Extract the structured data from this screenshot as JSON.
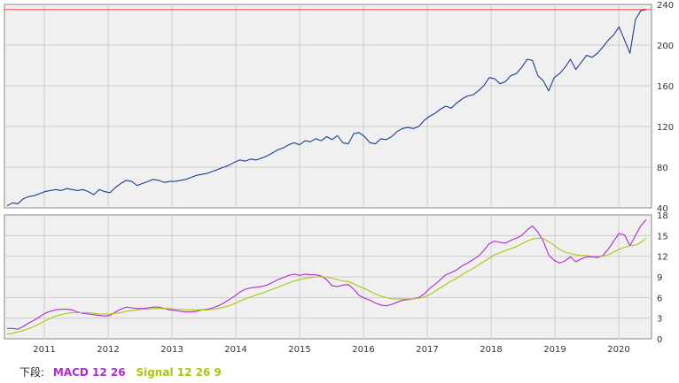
{
  "chart_data": [
    {
      "type": "line",
      "x_labels": [
        "2011",
        "2012",
        "2013",
        "2014",
        "2015",
        "2016",
        "2017",
        "2018",
        "2019",
        "2020"
      ],
      "y_ticks": [
        40,
        80,
        120,
        160,
        200,
        240
      ],
      "ylim": [
        40,
        240
      ],
      "grid": true,
      "reference_line": 235,
      "colors": {
        "price": "#1f3f8f",
        "reference": "#ff6a6a",
        "panel_bg": "#f0f0f0",
        "grid": "#cccccc"
      },
      "series": [
        {
          "values": [
            42,
            45,
            44,
            49,
            51,
            52,
            54,
            56,
            57,
            58,
            57,
            59,
            58,
            57,
            58,
            56,
            53,
            58,
            56,
            55,
            60,
            64,
            67,
            66,
            62,
            64,
            66,
            68,
            67,
            65,
            66,
            66,
            67,
            68,
            70,
            72,
            73,
            74,
            76,
            78,
            80,
            82,
            85,
            87,
            86,
            88,
            87,
            89,
            91,
            94,
            97,
            99,
            102,
            104,
            102,
            106,
            105,
            108,
            106,
            110,
            107,
            111,
            104,
            103,
            113,
            114,
            110,
            104,
            103,
            108,
            107,
            110,
            115,
            118,
            119,
            118,
            120,
            126,
            130,
            133,
            137,
            140,
            138,
            143,
            147,
            150,
            151,
            155,
            160,
            168,
            167,
            162,
            164,
            170,
            172,
            178,
            186,
            185,
            170,
            165,
            155,
            168,
            172,
            178,
            186,
            176,
            183,
            190,
            188,
            192,
            198,
            205,
            210,
            218,
            205,
            192,
            225,
            234,
            235
          ]
        }
      ]
    },
    {
      "type": "line",
      "x_labels": [
        "2011",
        "2012",
        "2013",
        "2014",
        "2015",
        "2016",
        "2017",
        "2018",
        "2019",
        "2020"
      ],
      "y_ticks": [
        0,
        3,
        6,
        9,
        12,
        15,
        18
      ],
      "ylim": [
        0,
        18
      ],
      "grid": true,
      "colors": {
        "macd": "#b02ad6",
        "signal": "#a7c90a",
        "panel_bg": "#f0f0f0",
        "grid": "#cccccc"
      },
      "series": [
        {
          "name": "MACD 12 26",
          "values": [
            1.5,
            1.5,
            1.4,
            1.8,
            2.3,
            2.7,
            3.2,
            3.7,
            4.0,
            4.2,
            4.3,
            4.3,
            4.2,
            3.9,
            3.7,
            3.6,
            3.5,
            3.4,
            3.3,
            3.4,
            3.9,
            4.3,
            4.6,
            4.5,
            4.4,
            4.4,
            4.5,
            4.6,
            4.6,
            4.4,
            4.2,
            4.1,
            4.0,
            3.9,
            3.9,
            4.0,
            4.2,
            4.3,
            4.5,
            4.8,
            5.2,
            5.7,
            6.2,
            6.8,
            7.2,
            7.4,
            7.5,
            7.6,
            7.8,
            8.2,
            8.6,
            8.9,
            9.2,
            9.4,
            9.2,
            9.4,
            9.3,
            9.3,
            9.1,
            8.6,
            7.7,
            7.6,
            7.8,
            7.9,
            7.2,
            6.3,
            5.9,
            5.6,
            5.2,
            4.9,
            4.8,
            5.0,
            5.3,
            5.6,
            5.7,
            5.8,
            6.0,
            6.5,
            7.3,
            7.9,
            8.6,
            9.3,
            9.6,
            10.0,
            10.6,
            11.0,
            11.5,
            12.0,
            12.8,
            13.8,
            14.2,
            14.0,
            13.9,
            14.3,
            14.6,
            15.0,
            15.8,
            16.4,
            15.5,
            14.2,
            12.2,
            11.4,
            11.0,
            11.3,
            11.9,
            11.2,
            11.6,
            11.9,
            11.9,
            11.8,
            12.1,
            13.0,
            14.2,
            15.3,
            15.1,
            13.5,
            15.0,
            16.4,
            17.3
          ]
        },
        {
          "name": "Signal 12 26 9",
          "values": [
            0.7,
            0.8,
            1.0,
            1.2,
            1.5,
            1.8,
            2.2,
            2.6,
            3.0,
            3.3,
            3.5,
            3.7,
            3.8,
            3.8,
            3.8,
            3.8,
            3.7,
            3.6,
            3.6,
            3.6,
            3.7,
            3.8,
            4.0,
            4.1,
            4.2,
            4.3,
            4.3,
            4.4,
            4.4,
            4.4,
            4.4,
            4.3,
            4.3,
            4.2,
            4.2,
            4.2,
            4.2,
            4.2,
            4.3,
            4.4,
            4.6,
            4.8,
            5.1,
            5.5,
            5.8,
            6.1,
            6.4,
            6.6,
            6.9,
            7.2,
            7.5,
            7.8,
            8.1,
            8.4,
            8.6,
            8.8,
            8.9,
            9.0,
            9.0,
            9.0,
            8.8,
            8.6,
            8.4,
            8.3,
            8.0,
            7.6,
            7.3,
            6.9,
            6.5,
            6.2,
            6.0,
            5.8,
            5.8,
            5.8,
            5.8,
            5.8,
            5.9,
            6.1,
            6.4,
            6.9,
            7.4,
            7.9,
            8.4,
            8.8,
            9.3,
            9.8,
            10.2,
            10.7,
            11.2,
            11.7,
            12.2,
            12.5,
            12.8,
            13.1,
            13.4,
            13.8,
            14.2,
            14.5,
            14.6,
            14.6,
            14.1,
            13.6,
            13.0,
            12.6,
            12.4,
            12.2,
            12.1,
            12.1,
            12.0,
            12.0,
            12.0,
            12.2,
            12.6,
            13.0,
            13.3,
            13.5,
            13.6,
            14.0,
            14.6
          ]
        }
      ]
    }
  ],
  "legend": {
    "prefix": "下段:",
    "macd": "MACD 12 26",
    "signal": "Signal 12 26 9"
  }
}
